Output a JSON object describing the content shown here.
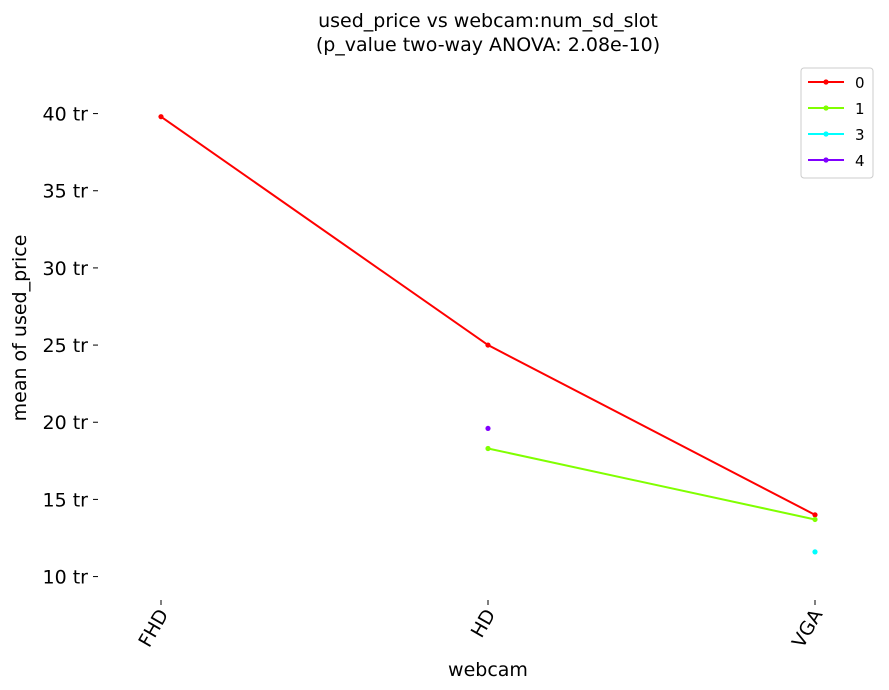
{
  "chart_data": {
    "type": "line",
    "title": "used_price vs webcam:num_sd_slot",
    "subtitle": "(p_value two-way ANOVA: 2.08e-10)",
    "xlabel": "webcam",
    "ylabel": "mean of used_price",
    "categories": [
      "FHD",
      "HD",
      "VGA"
    ],
    "y_ticks": [
      {
        "value": 10000000,
        "label": "10 tr"
      },
      {
        "value": 15000000,
        "label": "15 tr"
      },
      {
        "value": 20000000,
        "label": "20 tr"
      },
      {
        "value": 25000000,
        "label": "25 tr"
      },
      {
        "value": 30000000,
        "label": "30 tr"
      },
      {
        "value": 35000000,
        "label": "35 tr"
      },
      {
        "value": 40000000,
        "label": "40 tr"
      }
    ],
    "ylim": [
      9000000,
      42500000
    ],
    "grid": false,
    "legend_position": "top-right",
    "series": [
      {
        "name": "0",
        "color": "#ff0000",
        "values": [
          39800000,
          25000000,
          14000000
        ]
      },
      {
        "name": "1",
        "color": "#80ff00",
        "values": [
          null,
          18300000,
          13700000
        ]
      },
      {
        "name": "3",
        "color": "#00ffff",
        "values": [
          null,
          null,
          11600000
        ]
      },
      {
        "name": "4",
        "color": "#8000ff",
        "values": [
          null,
          19600000,
          null
        ]
      }
    ]
  }
}
